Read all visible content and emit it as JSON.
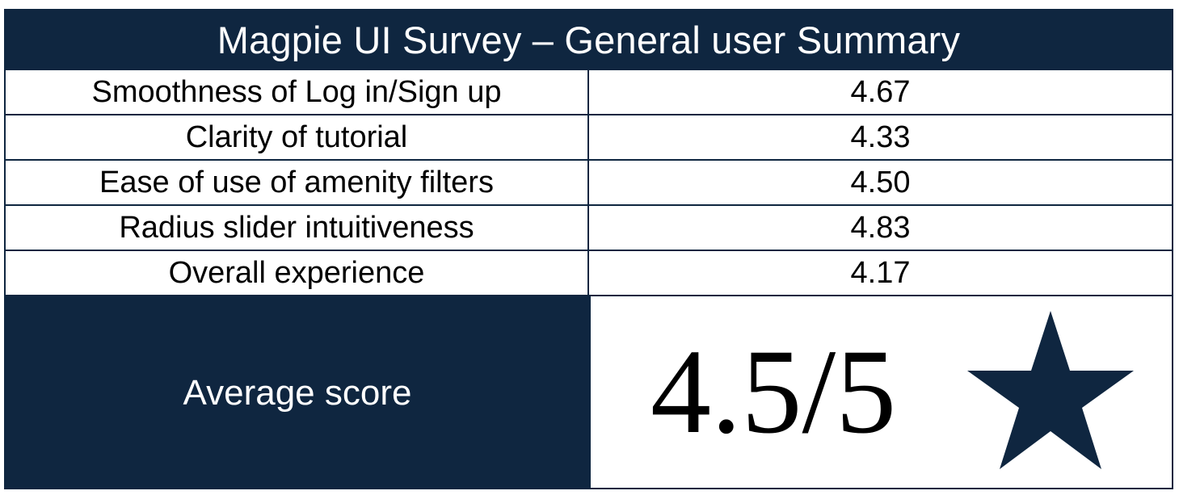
{
  "title": "Magpie UI Survey – General user Summary",
  "rows": [
    {
      "label": "Smoothness of Log in/Sign up",
      "value": "4.67"
    },
    {
      "label": "Clarity of tutorial",
      "value": "4.33"
    },
    {
      "label": "Ease of use of amenity filters",
      "value": "4.50"
    },
    {
      "label": "Radius slider intuitiveness",
      "value": "4.83"
    },
    {
      "label": "Overall experience",
      "value": "4.17"
    }
  ],
  "average": {
    "label": "Average score",
    "score": "4.5/5",
    "icon": "star-icon"
  },
  "colors": {
    "navy": "#0f2640",
    "white": "#ffffff",
    "text": "#000000"
  }
}
